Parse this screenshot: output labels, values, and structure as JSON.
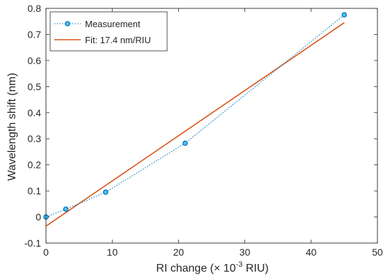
{
  "chart_data": {
    "type": "line",
    "xlabel_main": "RI change (",
    "xlabel_times": "× 10",
    "xlabel_exp": "-3",
    "xlabel_unit": " RIU)",
    "ylabel": "Wavelength shift (nm)",
    "xlim": [
      0,
      50
    ],
    "ylim": [
      -0.1,
      0.8
    ],
    "xticks": [
      0,
      10,
      20,
      30,
      40,
      50
    ],
    "xtick_labels": [
      "0",
      "10",
      "20",
      "30",
      "40",
      "50"
    ],
    "yticks": [
      -0.1,
      0,
      0.1,
      0.2,
      0.3,
      0.4,
      0.5,
      0.6,
      0.7,
      0.8
    ],
    "ytick_labels": [
      "-0.1",
      "0",
      "0.1",
      "0.2",
      "0.3",
      "0.4",
      "0.5",
      "0.6",
      "0.7",
      "0.8"
    ],
    "grid": false,
    "legend_position": "top-left",
    "series": [
      {
        "name": "Measurement",
        "style": "dotted-line-circle-markers",
        "color": "#0072BD",
        "marker_fill": "#4DBEEE",
        "x": [
          0,
          3,
          9,
          21,
          45
        ],
        "y": [
          0,
          0.03,
          0.095,
          0.283,
          0.775
        ]
      },
      {
        "name": "Fit: 17.4 nm/RIU",
        "style": "solid-line",
        "color": "#D95319",
        "x": [
          0,
          45
        ],
        "y": [
          -0.035,
          0.745
        ]
      }
    ]
  }
}
